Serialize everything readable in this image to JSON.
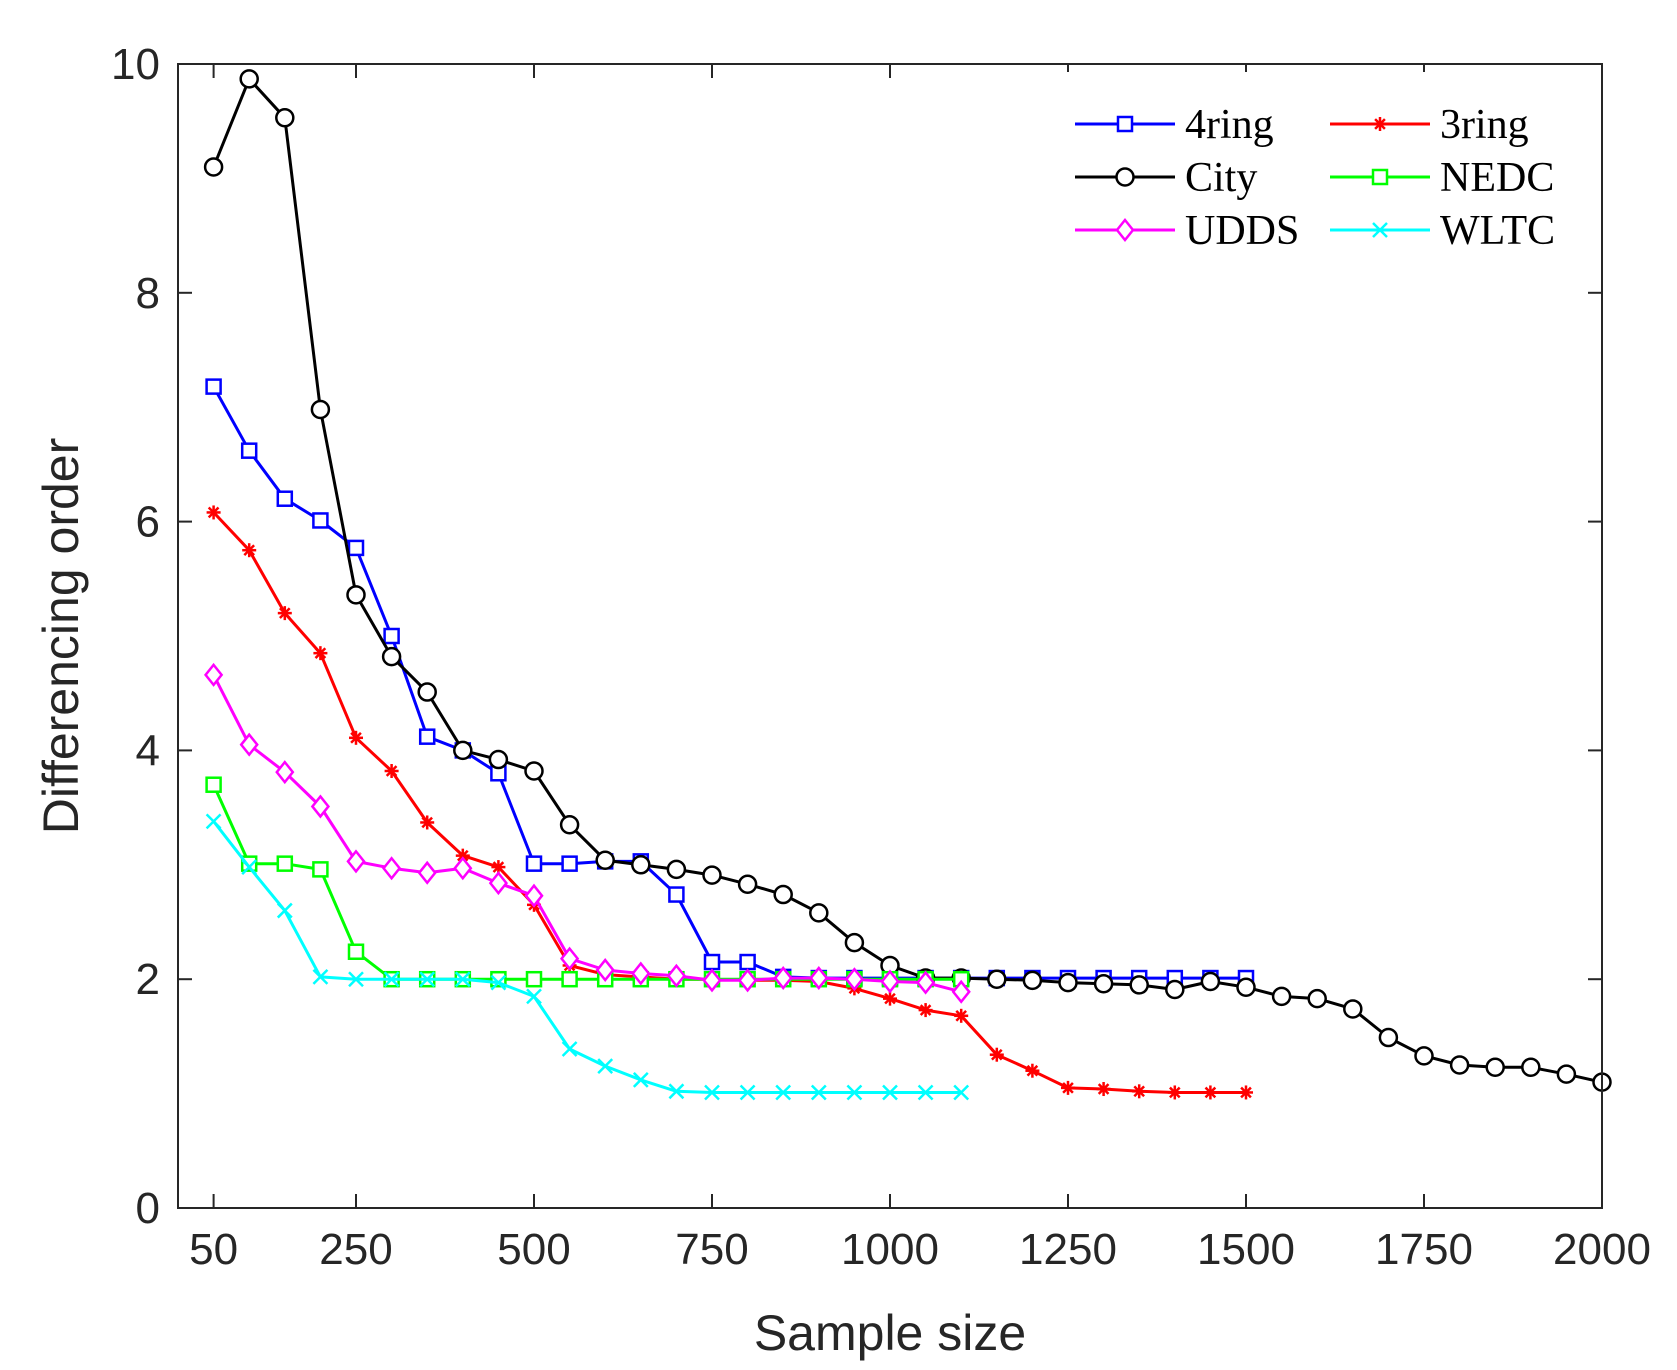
{
  "chart_data": {
    "type": "line",
    "title": "",
    "xlabel": "Sample size",
    "ylabel": "Differencing order",
    "xlim": [
      0,
      2000
    ],
    "ylim": [
      0,
      10
    ],
    "xticks": [
      50,
      250,
      500,
      750,
      1000,
      1250,
      1500,
      1750,
      2000
    ],
    "xtick_labels": [
      "50",
      "250",
      "500",
      "750",
      "1000",
      "1250",
      "1500",
      "1750",
      "2000"
    ],
    "yticks": [
      0,
      2,
      4,
      6,
      8,
      10
    ],
    "ytick_labels": [
      "0",
      "2",
      "4",
      "6",
      "8",
      "10"
    ],
    "grid": false,
    "legend_position": "top-right",
    "series": [
      {
        "name": "4ring",
        "color": "#0000ff",
        "marker": "square",
        "x": [
          50,
          100,
          150,
          200,
          250,
          300,
          350,
          400,
          450,
          500,
          550,
          600,
          650,
          700,
          750,
          800,
          850,
          900,
          950,
          1000,
          1050,
          1100,
          1150,
          1200,
          1250,
          1300,
          1350,
          1400,
          1450,
          1500
        ],
        "y": [
          7.18,
          6.62,
          6.2,
          6.01,
          5.77,
          5.0,
          4.12,
          4.0,
          3.8,
          3.01,
          3.01,
          3.03,
          3.03,
          2.74,
          2.15,
          2.15,
          2.02,
          2.01,
          2.01,
          2.01,
          2.01,
          2.01,
          2.01,
          2.01,
          2.01,
          2.01,
          2.01,
          2.01,
          2.01,
          2.01
        ]
      },
      {
        "name": "3ring",
        "color": "#ff0000",
        "marker": "asterisk",
        "x": [
          50,
          100,
          150,
          200,
          250,
          300,
          350,
          400,
          450,
          500,
          550,
          600,
          650,
          700,
          750,
          800,
          850,
          900,
          950,
          1000,
          1050,
          1100,
          1150,
          1200,
          1250,
          1300,
          1350,
          1400,
          1450,
          1500
        ],
        "y": [
          6.08,
          5.75,
          5.2,
          4.85,
          4.11,
          3.82,
          3.37,
          3.08,
          2.98,
          2.65,
          2.12,
          2.04,
          2.02,
          2.0,
          2.0,
          1.99,
          1.99,
          1.98,
          1.92,
          1.83,
          1.73,
          1.68,
          1.34,
          1.2,
          1.05,
          1.04,
          1.02,
          1.01,
          1.01,
          1.01
        ]
      },
      {
        "name": "City",
        "color": "#000000",
        "marker": "circle",
        "x": [
          50,
          100,
          150,
          200,
          250,
          300,
          350,
          400,
          450,
          500,
          550,
          600,
          650,
          700,
          750,
          800,
          850,
          900,
          950,
          1000,
          1050,
          1100,
          1150,
          1200,
          1250,
          1300,
          1350,
          1400,
          1450,
          1500,
          1550,
          1600,
          1650,
          1700,
          1750,
          1800,
          1850,
          1900,
          1950,
          2000
        ],
        "y": [
          9.1,
          9.87,
          9.53,
          6.98,
          5.36,
          4.82,
          4.51,
          4.0,
          3.92,
          3.82,
          3.35,
          3.04,
          3.0,
          2.96,
          2.91,
          2.83,
          2.74,
          2.58,
          2.32,
          2.12,
          2.01,
          2.01,
          2.0,
          1.99,
          1.97,
          1.96,
          1.95,
          1.91,
          1.98,
          1.93,
          1.85,
          1.83,
          1.74,
          1.49,
          1.33,
          1.25,
          1.23,
          1.23,
          1.17,
          1.1
        ]
      },
      {
        "name": "NEDC",
        "color": "#00ff00",
        "marker": "square",
        "x": [
          50,
          100,
          150,
          200,
          250,
          300,
          350,
          400,
          450,
          500,
          550,
          600,
          650,
          700,
          750,
          800,
          850,
          900,
          950,
          1000,
          1050,
          1100
        ],
        "y": [
          3.7,
          3.01,
          3.01,
          2.96,
          2.24,
          2.0,
          2.0,
          2.0,
          2.0,
          2.0,
          2.0,
          2.0,
          2.0,
          2.0,
          2.0,
          2.0,
          2.0,
          2.0,
          2.0,
          2.0,
          2.0,
          2.0
        ]
      },
      {
        "name": "UDDS",
        "color": "#ff00ff",
        "marker": "diamond",
        "x": [
          50,
          100,
          150,
          200,
          250,
          300,
          350,
          400,
          450,
          500,
          550,
          600,
          650,
          700,
          750,
          800,
          850,
          900,
          950,
          1000,
          1050,
          1100
        ],
        "y": [
          4.66,
          4.05,
          3.81,
          3.51,
          3.03,
          2.97,
          2.93,
          2.97,
          2.84,
          2.73,
          2.18,
          2.08,
          2.05,
          2.03,
          1.99,
          1.99,
          2.01,
          2.01,
          2.0,
          1.98,
          1.97,
          1.89
        ]
      },
      {
        "name": "WLTC",
        "color": "#00ffff",
        "marker": "x",
        "x": [
          50,
          100,
          150,
          200,
          250,
          300,
          350,
          400,
          450,
          500,
          550,
          600,
          650,
          700,
          750,
          800,
          850,
          900,
          950,
          1000,
          1050,
          1100
        ],
        "y": [
          3.38,
          2.98,
          2.6,
          2.02,
          2.0,
          2.0,
          2.0,
          2.0,
          1.97,
          1.85,
          1.39,
          1.24,
          1.12,
          1.02,
          1.01,
          1.01,
          1.01,
          1.01,
          1.01,
          1.01,
          1.01,
          1.01
        ]
      }
    ]
  }
}
